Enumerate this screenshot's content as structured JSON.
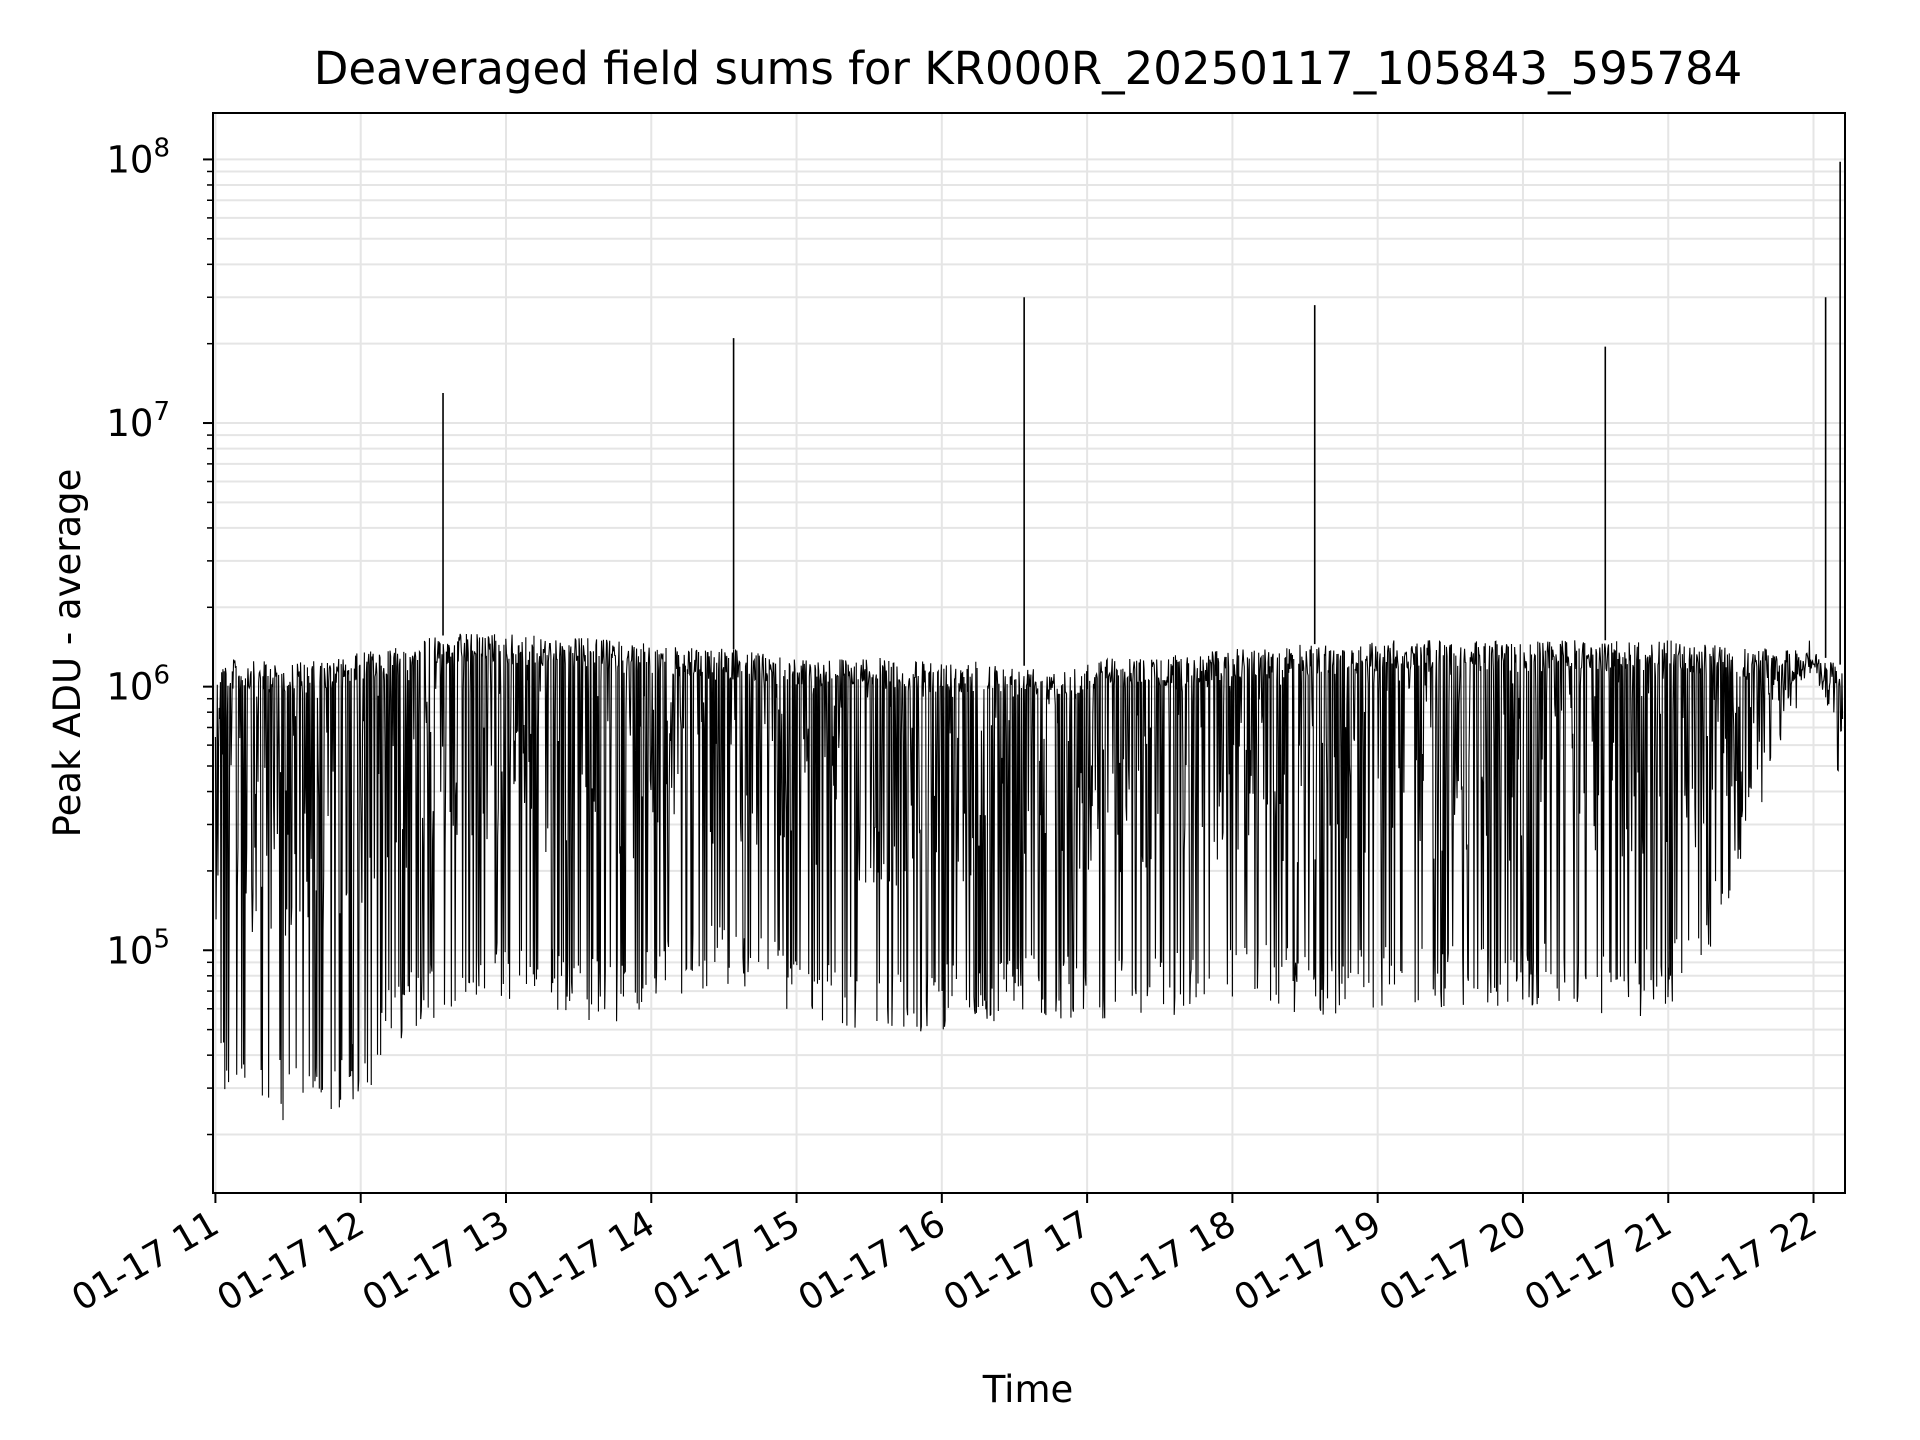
{
  "chart_data": {
    "type": "line",
    "title": "Deaveraged field sums for KR000R_20250117_105843_595784",
    "xlabel": "Time",
    "ylabel": "Peak ADU - average",
    "yscale": "log",
    "ylim": [
      12000,
      150000000
    ],
    "xlim": [
      "2025-01-17 10:59",
      "2025-01-17 22:13"
    ],
    "grid": true,
    "line_color": "#000000",
    "grid_color": "#e5e5e5",
    "xticks": [
      {
        "t": "2025-01-17 11:00",
        "label": "01-17 11"
      },
      {
        "t": "2025-01-17 12:00",
        "label": "01-17 12"
      },
      {
        "t": "2025-01-17 13:00",
        "label": "01-17 13"
      },
      {
        "t": "2025-01-17 14:00",
        "label": "01-17 14"
      },
      {
        "t": "2025-01-17 15:00",
        "label": "01-17 15"
      },
      {
        "t": "2025-01-17 16:00",
        "label": "01-17 16"
      },
      {
        "t": "2025-01-17 17:00",
        "label": "01-17 17"
      },
      {
        "t": "2025-01-17 18:00",
        "label": "01-17 18"
      },
      {
        "t": "2025-01-17 19:00",
        "label": "01-17 19"
      },
      {
        "t": "2025-01-17 20:00",
        "label": "01-17 20"
      },
      {
        "t": "2025-01-17 21:00",
        "label": "01-17 21"
      },
      {
        "t": "2025-01-17 22:00",
        "label": "01-17 22"
      }
    ],
    "yticks": [
      {
        "value": 100000,
        "base": "10",
        "exp": "5"
      },
      {
        "value": 1000000,
        "base": "10",
        "exp": "6"
      },
      {
        "value": 10000000,
        "base": "10",
        "exp": "7"
      },
      {
        "value": 100000000,
        "base": "10",
        "exp": "8"
      }
    ],
    "series": [
      {
        "x": [
          "2025-01-17 11:00",
          "2025-01-17 11:15",
          "2025-01-17 11:30",
          "2025-01-17 11:45",
          "2025-01-17 12:00",
          "2025-01-17 12:15",
          "2025-01-17 12:30",
          "2025-01-17 12:45",
          "2025-01-17 13:00",
          "2025-01-17 13:15",
          "2025-01-17 13:30",
          "2025-01-17 13:45",
          "2025-01-17 14:00",
          "2025-01-17 14:15",
          "2025-01-17 14:30",
          "2025-01-17 14:45",
          "2025-01-17 15:00",
          "2025-01-17 15:15",
          "2025-01-17 15:30",
          "2025-01-17 15:45",
          "2025-01-17 16:00",
          "2025-01-17 16:15",
          "2025-01-17 16:30",
          "2025-01-17 16:45",
          "2025-01-17 17:00",
          "2025-01-17 17:15",
          "2025-01-17 17:30",
          "2025-01-17 17:45",
          "2025-01-17 18:00",
          "2025-01-17 18:15",
          "2025-01-17 18:30",
          "2025-01-17 18:45",
          "2025-01-17 19:00",
          "2025-01-17 19:15",
          "2025-01-17 19:30",
          "2025-01-17 19:45",
          "2025-01-17 20:00",
          "2025-01-17 20:15",
          "2025-01-17 20:30",
          "2025-01-17 20:45",
          "2025-01-17 21:00",
          "2025-01-17 21:15",
          "2025-01-17 21:30",
          "2025-01-17 21:45",
          "2025-01-17 22:00",
          "2025-01-17 22:12"
        ],
        "upper": [
          1300000,
          1250000,
          1250000,
          1250000,
          1350000,
          1450000,
          1550000,
          1600000,
          1600000,
          1550000,
          1550000,
          1500000,
          1450000,
          1400000,
          1400000,
          1350000,
          1300000,
          1300000,
          1300000,
          1250000,
          1250000,
          1250000,
          1200000,
          1200000,
          1250000,
          1300000,
          1300000,
          1350000,
          1400000,
          1400000,
          1450000,
          1450000,
          1500000,
          1500000,
          1500000,
          1500000,
          1500000,
          1500000,
          1500000,
          1500000,
          1500000,
          1450000,
          1400000,
          1400000,
          1350000,
          1200000
        ],
        "lower": [
          28000,
          24000,
          22000,
          23000,
          26000,
          45000,
          55000,
          60000,
          62000,
          60000,
          55000,
          52000,
          60000,
          70000,
          70000,
          68000,
          55000,
          50000,
          48000,
          47000,
          50000,
          50000,
          55000,
          55000,
          55000,
          55000,
          55000,
          55000,
          60000,
          60000,
          55000,
          55000,
          60000,
          60000,
          60000,
          60000,
          60000,
          60000,
          55000,
          55000,
          60000,
          80000,
          200000,
          550000,
          1100000,
          400000
        ]
      }
    ],
    "spikes": [
      {
        "t": "2025-01-17 12:34",
        "value": 13000000
      },
      {
        "t": "2025-01-17 14:34",
        "value": 21000000
      },
      {
        "t": "2025-01-17 16:34",
        "value": 30000000
      },
      {
        "t": "2025-01-17 18:34",
        "value": 28000000
      },
      {
        "t": "2025-01-17 20:34",
        "value": 19500000
      },
      {
        "t": "2025-01-17 22:05",
        "value": 30000000
      },
      {
        "t": "2025-01-17 22:11",
        "value": 98000000
      }
    ]
  }
}
